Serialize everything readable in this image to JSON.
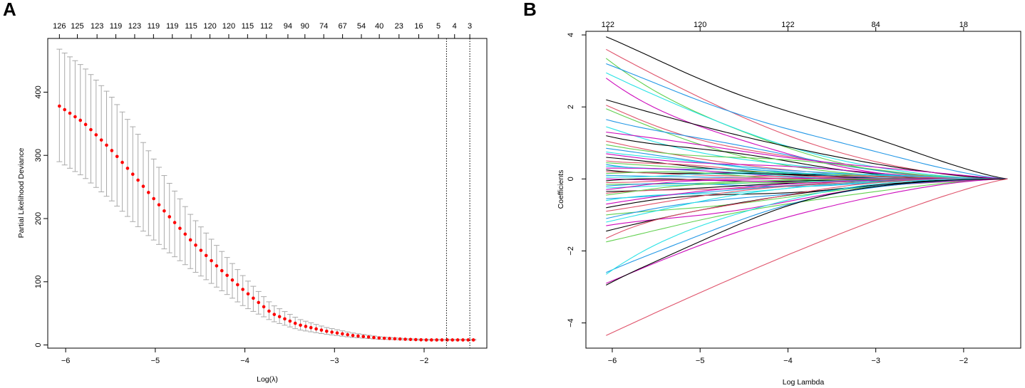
{
  "figure": {
    "panels": [
      "A",
      "B"
    ]
  },
  "chart_data": [
    {
      "panel": "A",
      "type": "scatter",
      "title": "",
      "xlabel": "Log(λ)",
      "ylabel": "Partial Likelihood Deviance",
      "xlim": [
        -6.2,
        -1.3
      ],
      "ylim": [
        -5,
        485
      ],
      "x_ticks": [
        -6,
        -5,
        -4,
        -3,
        -2
      ],
      "x_tick_labels": [
        "−6",
        "−5",
        "−4",
        "−3",
        "−2"
      ],
      "y_ticks": [
        0,
        100,
        200,
        300,
        400
      ],
      "y_tick_labels": [
        "0",
        "100",
        "200",
        "300",
        "400"
      ],
      "top_ticks": [
        -6.07,
        -5.87,
        -5.65,
        -5.44,
        -5.23,
        -5.02,
        -4.81,
        -4.6,
        -4.39,
        -4.18,
        -3.97,
        -3.76,
        -3.52,
        -3.33,
        -3.12,
        -2.91,
        -2.7,
        -2.5,
        -2.28,
        -2.06,
        -1.84,
        -1.66,
        -1.49
      ],
      "top_tick_labels": [
        "126",
        "125",
        "123",
        "119",
        "123",
        "119",
        "119",
        "115",
        "120",
        "120",
        "115",
        "112",
        "94",
        "90",
        "74",
        "67",
        "54",
        "40",
        "23",
        "16",
        "5",
        "4",
        "3"
      ],
      "points": {
        "x_start": -6.07,
        "x_end": -1.45,
        "count": 80,
        "mean_key": [
          [
            -6.07,
            378
          ],
          [
            -5.8,
            352
          ],
          [
            -5.5,
            310
          ],
          [
            -5.2,
            262
          ],
          [
            -4.9,
            212
          ],
          [
            -4.6,
            165
          ],
          [
            -4.3,
            123
          ],
          [
            -4.0,
            85
          ],
          [
            -3.7,
            50
          ],
          [
            -3.4,
            32
          ],
          [
            -3.1,
            22
          ],
          [
            -2.8,
            15
          ],
          [
            -2.5,
            11
          ],
          [
            -2.2,
            9
          ],
          [
            -2.0,
            8
          ],
          [
            -1.45,
            8
          ]
        ],
        "upper_key": [
          [
            -6.07,
            468
          ],
          [
            -5.8,
            440
          ],
          [
            -5.5,
            395
          ],
          [
            -5.2,
            335
          ],
          [
            -4.9,
            268
          ],
          [
            -4.6,
            205
          ],
          [
            -4.3,
            155
          ],
          [
            -4.0,
            106
          ],
          [
            -3.7,
            64
          ],
          [
            -3.4,
            41
          ],
          [
            -3.1,
            28
          ],
          [
            -2.8,
            19
          ],
          [
            -2.5,
            13
          ],
          [
            -2.2,
            10
          ],
          [
            -2.0,
            9
          ],
          [
            -1.45,
            9
          ]
        ],
        "lower_key": [
          [
            -6.07,
            290
          ],
          [
            -5.8,
            266
          ],
          [
            -5.5,
            230
          ],
          [
            -5.2,
            188
          ],
          [
            -4.9,
            152
          ],
          [
            -4.6,
            120
          ],
          [
            -4.3,
            90
          ],
          [
            -4.0,
            60
          ],
          [
            -3.7,
            38
          ],
          [
            -3.4,
            24
          ],
          [
            -3.1,
            17
          ],
          [
            -2.8,
            12
          ],
          [
            -2.5,
            9
          ],
          [
            -2.2,
            8
          ],
          [
            -2.0,
            7.5
          ],
          [
            -1.45,
            7.5
          ]
        ]
      },
      "vlines": [
        -1.75,
        -1.49
      ],
      "colors": {
        "points": "#ff0000",
        "errorbars": "#aaaaaa",
        "vlines": "#000000"
      }
    },
    {
      "panel": "B",
      "type": "line",
      "title": "",
      "xlabel": "Log Lambda",
      "ylabel": "Coefficients",
      "xlim": [
        -6.3,
        -1.35
      ],
      "ylim": [
        -4.7,
        4.1
      ],
      "x_ticks": [
        -6,
        -5,
        -4,
        -3,
        -2
      ],
      "x_tick_labels": [
        "−6",
        "−5",
        "−4",
        "−3",
        "−2"
      ],
      "y_ticks": [
        -4,
        -2,
        0,
        2,
        4
      ],
      "y_tick_labels": [
        "−4",
        "−2",
        "0",
        "2",
        "4"
      ],
      "top_ticks": [
        -6.05,
        -5.0,
        -4.0,
        -3.0,
        -2.0
      ],
      "top_tick_labels": [
        "122",
        "120",
        "122",
        "84",
        "18"
      ],
      "paths": {
        "x_start": -6.07,
        "x_end": -1.5,
        "palette": [
          "#000000",
          "#df536b",
          "#61d04f",
          "#2297e6",
          "#28e2e5",
          "#cd0bbc"
        ],
        "start_values": [
          3.95,
          3.6,
          3.35,
          3.2,
          2.95,
          2.8,
          2.2,
          2.05,
          1.95,
          1.65,
          1.45,
          1.3,
          1.2,
          1.05,
          0.95,
          0.85,
          0.75,
          0.7,
          0.6,
          0.5,
          0.45,
          0.4,
          0.35,
          0.3,
          0.25,
          0.2,
          0.15,
          0.1,
          0.05,
          0.0,
          -0.05,
          -0.1,
          -0.15,
          -0.2,
          -0.25,
          -0.3,
          -0.35,
          -0.4,
          -0.45,
          -0.55,
          -0.6,
          -0.7,
          -0.8,
          -0.9,
          -1.0,
          -1.1,
          -1.2,
          -1.3,
          -1.45,
          -1.65,
          -1.75,
          -2.6,
          -2.65,
          -2.9,
          -2.95,
          -4.35
        ]
      }
    }
  ]
}
